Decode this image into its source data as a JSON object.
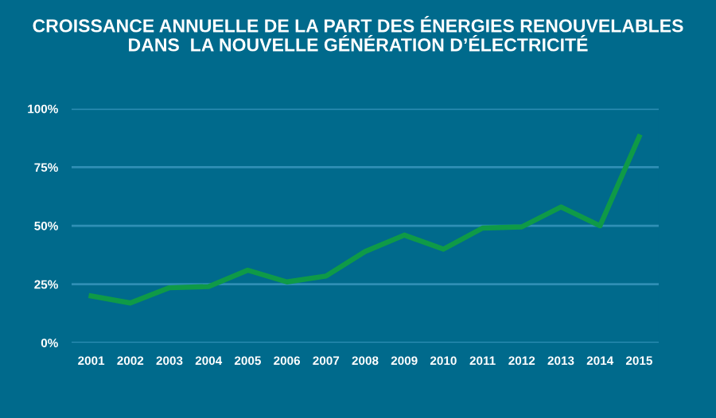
{
  "chart_data": {
    "type": "line",
    "title": "CROISSANCE ANNUELLE DE LA PART DES ÉNERGIES RENOUVELABLES\nDANS  LA NOUVELLE GÉNÉRATION D’ÉLECTRICITÉ",
    "categories": [
      "2001",
      "2002",
      "2003",
      "2004",
      "2005",
      "2006",
      "2007",
      "2008",
      "2009",
      "2010",
      "2011",
      "2012",
      "2013",
      "2014",
      "2015"
    ],
    "series": [
      {
        "color": "#0f9a47",
        "values": [
          20,
          17,
          23.5,
          24,
          31,
          26,
          28.5,
          39,
          46,
          40,
          49,
          49.5,
          58,
          50,
          88
        ]
      }
    ],
    "ylim": [
      0,
      100
    ],
    "yticks": [
      {
        "value": 0,
        "label": "0%"
      },
      {
        "value": 25,
        "label": "25%"
      },
      {
        "value": 50,
        "label": "50%"
      },
      {
        "value": 75,
        "label": "75%"
      },
      {
        "value": 100,
        "label": "100%"
      }
    ],
    "grid": "y",
    "marker": "none",
    "line_style": "solid"
  }
}
